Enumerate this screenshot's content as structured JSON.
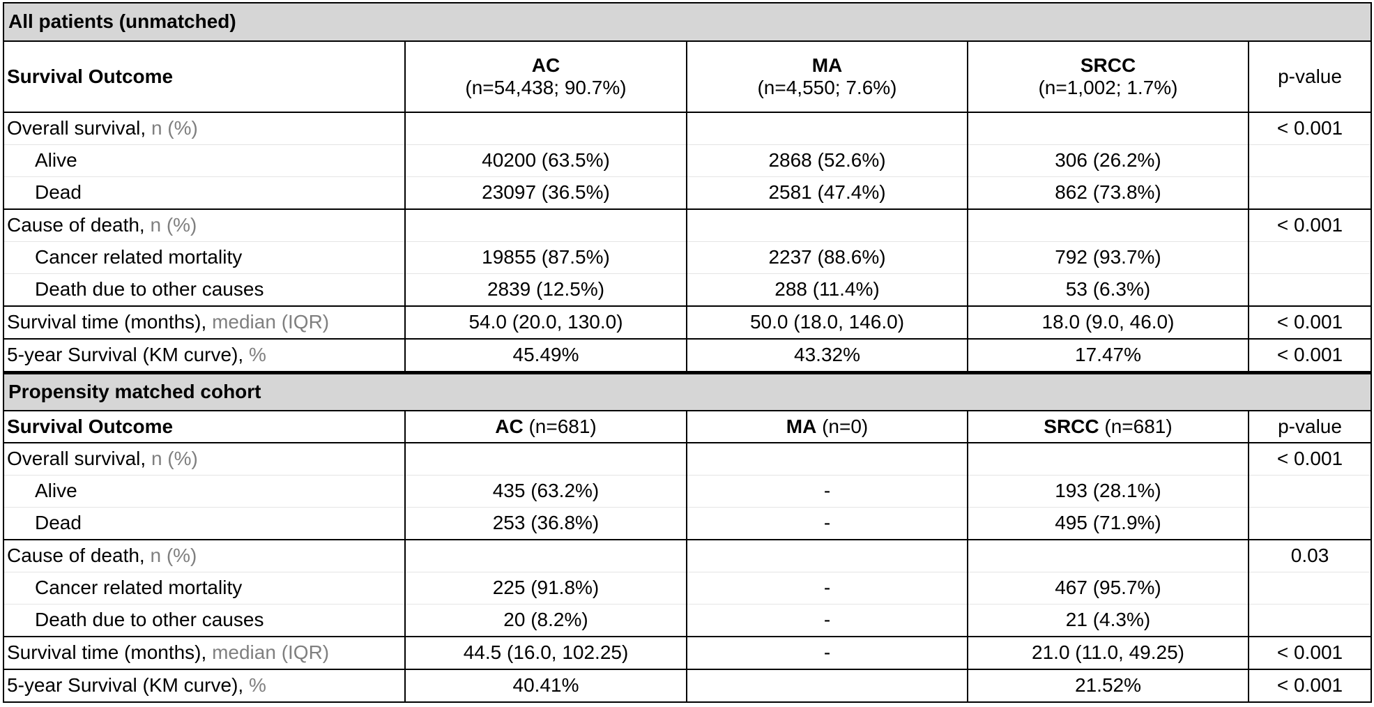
{
  "sections": [
    {
      "title": "All patients (unmatched)",
      "header": {
        "label": "Survival Outcome",
        "groups": [
          {
            "name": "AC",
            "n": "(n=54,438; 90.7%)"
          },
          {
            "name": "MA",
            "n": "(n=4,550; 7.6%)"
          },
          {
            "name": "SRCC",
            "n": "(n=1,002; 1.7%)"
          }
        ],
        "pvalue": "p-value"
      },
      "rows": [
        {
          "label": "Overall survival, ",
          "unit": "n (%)",
          "ac": "",
          "ma": "",
          "srcc": "",
          "p": "< 0.001"
        },
        {
          "label": "Alive",
          "unit": "",
          "ac": "40200 (63.5%)",
          "ma": "2868 (52.6%)",
          "srcc": "306 (26.2%)",
          "p": ""
        },
        {
          "label": "Dead",
          "unit": "",
          "ac": "23097 (36.5%)",
          "ma": "2581 (47.4%)",
          "srcc": "862 (73.8%)",
          "p": ""
        },
        {
          "label": "Cause of death, ",
          "unit": "n (%)",
          "ac": "",
          "ma": "",
          "srcc": "",
          "p": "< 0.001"
        },
        {
          "label": "Cancer related mortality",
          "unit": "",
          "ac": "19855 (87.5%)",
          "ma": "2237 (88.6%)",
          "srcc": "792 (93.7%)",
          "p": ""
        },
        {
          "label": "Death due to other causes",
          "unit": "",
          "ac": "2839 (12.5%)",
          "ma": "288 (11.4%)",
          "srcc": "53 (6.3%)",
          "p": ""
        },
        {
          "label": "Survival time (months), ",
          "unit": "median (IQR)",
          "ac": "54.0 (20.0, 130.0)",
          "ma": "50.0 (18.0, 146.0)",
          "srcc": "18.0 (9.0, 46.0)",
          "p": "< 0.001"
        },
        {
          "label": "5-year Survival (KM curve), ",
          "unit": "%",
          "ac": "45.49%",
          "ma": "43.32%",
          "srcc": "17.47%",
          "p": "< 0.001"
        }
      ]
    },
    {
      "title": "Propensity matched cohort",
      "header": {
        "label": "Survival Outcome",
        "groups": [
          {
            "name": "AC",
            "n": " (n=681)"
          },
          {
            "name": "MA",
            "n": " (n=0)"
          },
          {
            "name": "SRCC",
            "n": " (n=681)"
          }
        ],
        "pvalue": "p-value"
      },
      "rows": [
        {
          "label": "Overall survival, ",
          "unit": "n (%)",
          "ac": "",
          "ma": "",
          "srcc": "",
          "p": "< 0.001"
        },
        {
          "label": "Alive",
          "unit": "",
          "ac": "435 (63.2%)",
          "ma": "-",
          "srcc": "193 (28.1%)",
          "p": ""
        },
        {
          "label": "Dead",
          "unit": "",
          "ac": "253 (36.8%)",
          "ma": "-",
          "srcc": "495 (71.9%)",
          "p": ""
        },
        {
          "label": "Cause of death, ",
          "unit": "n (%)",
          "ac": "",
          "ma": "",
          "srcc": "",
          "p": "0.03"
        },
        {
          "label": "Cancer related mortality",
          "unit": "",
          "ac": "225 (91.8%)",
          "ma": "-",
          "srcc": "467 (95.7%)",
          "p": ""
        },
        {
          "label": "Death due to other causes",
          "unit": "",
          "ac": "20 (8.2%)",
          "ma": "-",
          "srcc": "21 (4.3%)",
          "p": ""
        },
        {
          "label": "Survival time (months), ",
          "unit": "median (IQR)",
          "ac": "44.5 (16.0, 102.25)",
          "ma": "-",
          "srcc": "21.0 (11.0, 49.25)",
          "p": "< 0.001"
        },
        {
          "label": "5-year Survival (KM curve), ",
          "unit": "%",
          "ac": "40.41%",
          "ma": "",
          "srcc": "21.52%",
          "p": "< 0.001"
        }
      ]
    }
  ]
}
